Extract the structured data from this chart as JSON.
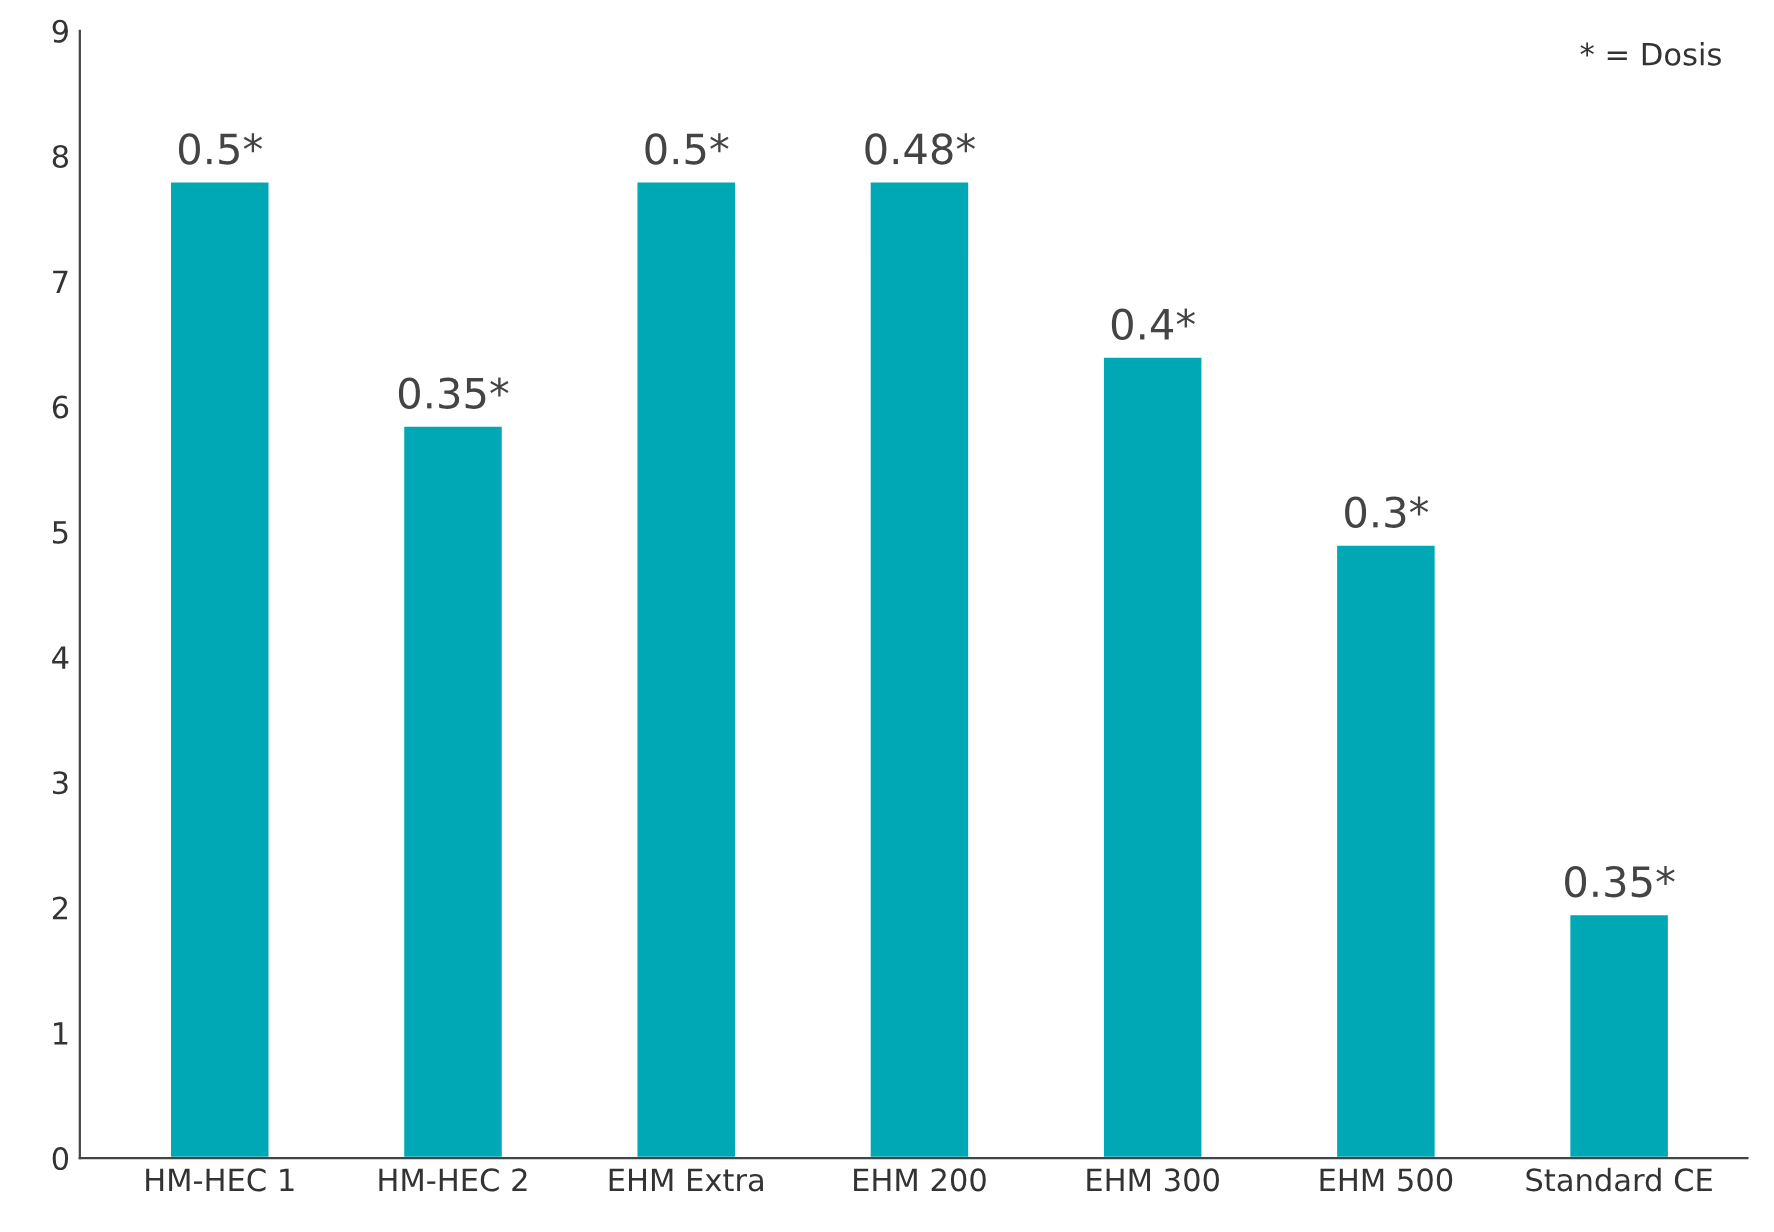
{
  "chart_data": {
    "type": "bar",
    "categories": [
      "HM-HEC 1",
      "HM-HEC 2",
      "EHM Extra",
      "EHM 200",
      "EHM 300",
      "EHM 500",
      "Standard CE"
    ],
    "values": [
      7.8,
      5.85,
      7.8,
      7.8,
      6.4,
      4.9,
      1.95
    ],
    "color": "#00a8b5",
    "ylim": [
      0,
      9
    ],
    "yticks": [
      0,
      1,
      2,
      3,
      4,
      5,
      6,
      7,
      8,
      9
    ],
    "annotations": [
      "* = Dosis",
      {
        "text": "0.5*",
        "x": "HM-HEC 1",
        "y": 7.8
      },
      {
        "text": "0.35*",
        "x": "HM-HEC 2",
        "y": 5.85
      },
      {
        "text": "0.5*",
        "x": "EHM Extra",
        "y": 7.8
      },
      {
        "text": "0.48*",
        "x": "EHM 200",
        "y": 7.8
      },
      {
        "text": "0.4*",
        "x": "EHM 300",
        "y": 6.4
      },
      {
        "text": "0.3*",
        "x": "EHM 500",
        "y": 4.9
      },
      {
        "text": "0.35*",
        "x": "Standard CE",
        "y": 1.95
      }
    ],
    "grid": false,
    "legend": false
  }
}
